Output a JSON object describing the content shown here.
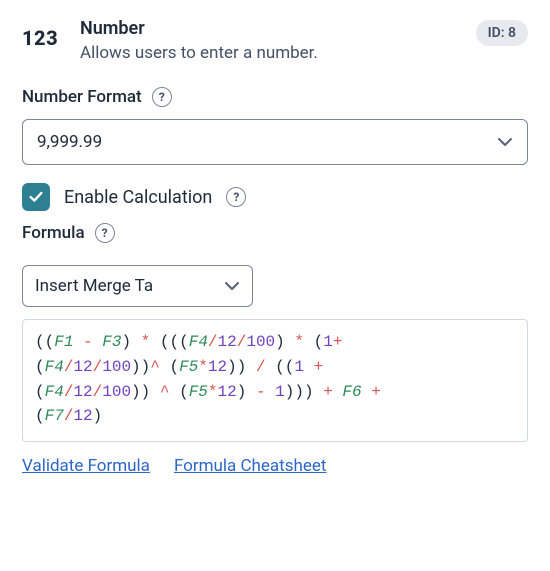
{
  "header": {
    "type_icon_text": "123",
    "title": "Number",
    "description": "Allows users to enter a number.",
    "id_badge": "ID: 8"
  },
  "number_format": {
    "label": "Number Format",
    "value": "9,999.99"
  },
  "enable_calc": {
    "checked": true,
    "label": "Enable Calculation"
  },
  "formula": {
    "label": "Formula",
    "merge_tag_label": "Insert Merge Ta",
    "tokens": [
      {
        "t": "paren",
        "v": "("
      },
      {
        "t": "paren",
        "v": "("
      },
      {
        "t": "ref",
        "v": "F1"
      },
      {
        "t": "sp"
      },
      {
        "t": "op",
        "v": "-"
      },
      {
        "t": "sp"
      },
      {
        "t": "ref",
        "v": "F3"
      },
      {
        "t": "paren",
        "v": ")"
      },
      {
        "t": "sp"
      },
      {
        "t": "op",
        "v": "*"
      },
      {
        "t": "sp"
      },
      {
        "t": "paren",
        "v": "("
      },
      {
        "t": "paren",
        "v": "("
      },
      {
        "t": "paren",
        "v": "("
      },
      {
        "t": "ref",
        "v": "F4"
      },
      {
        "t": "op",
        "v": "/"
      },
      {
        "t": "num",
        "v": "12"
      },
      {
        "t": "op",
        "v": "/"
      },
      {
        "t": "num",
        "v": "100"
      },
      {
        "t": "paren",
        "v": ")"
      },
      {
        "t": "sp"
      },
      {
        "t": "op",
        "v": "*"
      },
      {
        "t": "sp"
      },
      {
        "t": "paren",
        "v": "("
      },
      {
        "t": "num",
        "v": "1"
      },
      {
        "t": "op",
        "v": "+"
      },
      {
        "t": "br"
      },
      {
        "t": "paren",
        "v": "("
      },
      {
        "t": "ref",
        "v": "F4"
      },
      {
        "t": "op",
        "v": "/"
      },
      {
        "t": "num",
        "v": "12"
      },
      {
        "t": "op",
        "v": "/"
      },
      {
        "t": "num",
        "v": "100"
      },
      {
        "t": "paren",
        "v": ")"
      },
      {
        "t": "paren",
        "v": ")"
      },
      {
        "t": "op",
        "v": "^"
      },
      {
        "t": "sp"
      },
      {
        "t": "paren",
        "v": "("
      },
      {
        "t": "ref",
        "v": "F5"
      },
      {
        "t": "op",
        "v": "*"
      },
      {
        "t": "num",
        "v": "12"
      },
      {
        "t": "paren",
        "v": ")"
      },
      {
        "t": "paren",
        "v": ")"
      },
      {
        "t": "sp"
      },
      {
        "t": "op",
        "v": "/"
      },
      {
        "t": "sp"
      },
      {
        "t": "paren",
        "v": "("
      },
      {
        "t": "paren",
        "v": "("
      },
      {
        "t": "num",
        "v": "1"
      },
      {
        "t": "sp"
      },
      {
        "t": "op",
        "v": "+"
      },
      {
        "t": "br"
      },
      {
        "t": "paren",
        "v": "("
      },
      {
        "t": "ref",
        "v": "F4"
      },
      {
        "t": "op",
        "v": "/"
      },
      {
        "t": "num",
        "v": "12"
      },
      {
        "t": "op",
        "v": "/"
      },
      {
        "t": "num",
        "v": "100"
      },
      {
        "t": "paren",
        "v": ")"
      },
      {
        "t": "paren",
        "v": ")"
      },
      {
        "t": "sp"
      },
      {
        "t": "op",
        "v": "^"
      },
      {
        "t": "sp"
      },
      {
        "t": "paren",
        "v": "("
      },
      {
        "t": "ref",
        "v": "F5"
      },
      {
        "t": "op",
        "v": "*"
      },
      {
        "t": "num",
        "v": "12"
      },
      {
        "t": "paren",
        "v": ")"
      },
      {
        "t": "sp"
      },
      {
        "t": "op",
        "v": "-"
      },
      {
        "t": "sp"
      },
      {
        "t": "num",
        "v": "1"
      },
      {
        "t": "paren",
        "v": ")"
      },
      {
        "t": "paren",
        "v": ")"
      },
      {
        "t": "paren",
        "v": ")"
      },
      {
        "t": "sp"
      },
      {
        "t": "op",
        "v": "+"
      },
      {
        "t": "sp"
      },
      {
        "t": "ref",
        "v": "F6"
      },
      {
        "t": "sp"
      },
      {
        "t": "op",
        "v": "+"
      },
      {
        "t": "br"
      },
      {
        "t": "paren",
        "v": "("
      },
      {
        "t": "ref",
        "v": "F7"
      },
      {
        "t": "op",
        "v": "/"
      },
      {
        "t": "num",
        "v": "12"
      },
      {
        "t": "paren",
        "v": ")"
      }
    ]
  },
  "links": {
    "validate": "Validate Formula",
    "cheatsheet": "Formula Cheatsheet"
  }
}
